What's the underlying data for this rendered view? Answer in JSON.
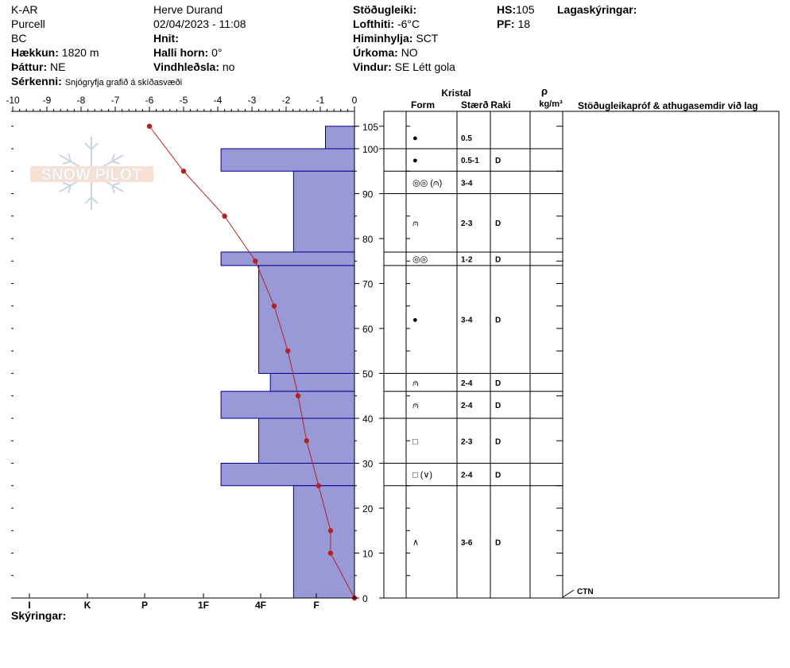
{
  "header": {
    "col1": [
      "K-AR",
      "Purcell",
      "BC"
    ],
    "elevation_label": "Hækkun:",
    "elevation_value": "1820 m",
    "aspect_label": "Þáttur:",
    "aspect_value": "NE",
    "observer": "Herve Durand",
    "datetime": "02/04/2023 - 11:08",
    "coords_label": "Hnit:",
    "slope_label": "Halli horn:",
    "slope_value": "0°",
    "wind_loading_label": "Vindhleðsla:",
    "wind_loading_value": "no",
    "stability_label": "Stöðugleiki:",
    "air_temp_label": "Lofthiti:",
    "air_temp_value": "-6°C",
    "sky_label": "Himinhylja:",
    "sky_value": "SCT",
    "precip_label": "Úrkoma:",
    "precip_value": "NO",
    "wind_label": "Vindur:",
    "wind_value": "SE Létt gola",
    "hs_label": "HS:",
    "hs_value": "105",
    "pf_label": "PF:",
    "pf_value": "18",
    "layer_notes_label": "Lagaskýringar:",
    "special_label": "Sérkenni:",
    "special_value": "Snjógryfja grafið á skíðasvæði",
    "legend_label": "Skýringar:"
  },
  "watermark": {
    "text": "SNOW PILOT"
  },
  "colors": {
    "hardness_fill": "#9999d8",
    "hardness_stroke": "#00008b",
    "temp_line": "#b22222"
  },
  "chart_data": {
    "type": "bar",
    "temperature_axis": {
      "ticks": [
        "-10",
        "-9",
        "-8",
        "-7",
        "-6",
        "-5",
        "-4",
        "-3",
        "-2",
        "-1",
        "0"
      ],
      "range": [
        -10,
        0
      ]
    },
    "height_axis": {
      "ticks": [
        "105",
        "100",
        "90",
        "80",
        "70",
        "60",
        "50",
        "40",
        "30",
        "20",
        "10",
        "0"
      ],
      "range": [
        0,
        105
      ]
    },
    "hardness_axis": {
      "labels": [
        "I",
        "K",
        "P",
        "1F",
        "4F",
        "F"
      ]
    },
    "hardness_layers": [
      {
        "bottom": 100,
        "top": 105,
        "hardness_units": 1.0
      },
      {
        "bottom": 95,
        "top": 100,
        "hardness_units": 4.6
      },
      {
        "bottom": 77,
        "top": 95,
        "hardness_units": 2.1
      },
      {
        "bottom": 74,
        "top": 77,
        "hardness_units": 4.6
      },
      {
        "bottom": 50,
        "top": 74,
        "hardness_units": 3.3
      },
      {
        "bottom": 46,
        "top": 50,
        "hardness_units": 2.9
      },
      {
        "bottom": 40,
        "top": 46,
        "hardness_units": 4.6
      },
      {
        "bottom": 30,
        "top": 40,
        "hardness_units": 3.3
      },
      {
        "bottom": 25,
        "top": 30,
        "hardness_units": 4.6
      },
      {
        "bottom": 0,
        "top": 25,
        "hardness_units": 2.1
      }
    ],
    "temperature_profile": [
      {
        "h": 105,
        "t": -6.0
      },
      {
        "h": 95,
        "t": -5.0
      },
      {
        "h": 85,
        "t": -3.8
      },
      {
        "h": 75,
        "t": -2.9
      },
      {
        "h": 65,
        "t": -2.35
      },
      {
        "h": 55,
        "t": -1.95
      },
      {
        "h": 45,
        "t": -1.65
      },
      {
        "h": 35,
        "t": -1.4
      },
      {
        "h": 25,
        "t": -1.05
      },
      {
        "h": 15,
        "t": -0.7
      },
      {
        "h": 10,
        "t": -0.7
      },
      {
        "h": 0,
        "t": 0
      }
    ],
    "table_headers": {
      "kristal": "Kristal",
      "form": "Form",
      "size": "Stærð",
      "moisture": "Raki",
      "rho": "ρ",
      "density_unit": "kg/m³",
      "tests": "Stöðugleikapróf & athugasemdir við lag"
    },
    "layers": [
      {
        "top": 105,
        "bottom": 100,
        "form": "●",
        "size": "0.5",
        "moisture": ""
      },
      {
        "top": 100,
        "bottom": 95,
        "form": "●",
        "size": "0.5-1",
        "moisture": "D"
      },
      {
        "top": 95,
        "bottom": 90,
        "form": "◎◎ (⩀)",
        "size": "3-4",
        "moisture": ""
      },
      {
        "top": 90,
        "bottom": 77,
        "form": "⩀",
        "size": "2-3",
        "moisture": "D"
      },
      {
        "top": 77,
        "bottom": 74,
        "form": "◎◎",
        "size": "1-2",
        "moisture": "D"
      },
      {
        "top": 74,
        "bottom": 50,
        "form": "●",
        "size": "3-4",
        "moisture": "D"
      },
      {
        "top": 50,
        "bottom": 46,
        "form": "⩀",
        "size": "2-4",
        "moisture": "D"
      },
      {
        "top": 46,
        "bottom": 40,
        "form": "⩀",
        "size": "2-4",
        "moisture": "D"
      },
      {
        "top": 40,
        "bottom": 30,
        "form": "□",
        "size": "2-3",
        "moisture": "D"
      },
      {
        "top": 30,
        "bottom": 25,
        "form": "□ (∨)",
        "size": "2-4",
        "moisture": "D"
      },
      {
        "top": 25,
        "bottom": 0,
        "form": "∧",
        "size": "3-6",
        "moisture": "D"
      }
    ],
    "test_annotation": {
      "text": "CTN",
      "height": 0
    }
  }
}
